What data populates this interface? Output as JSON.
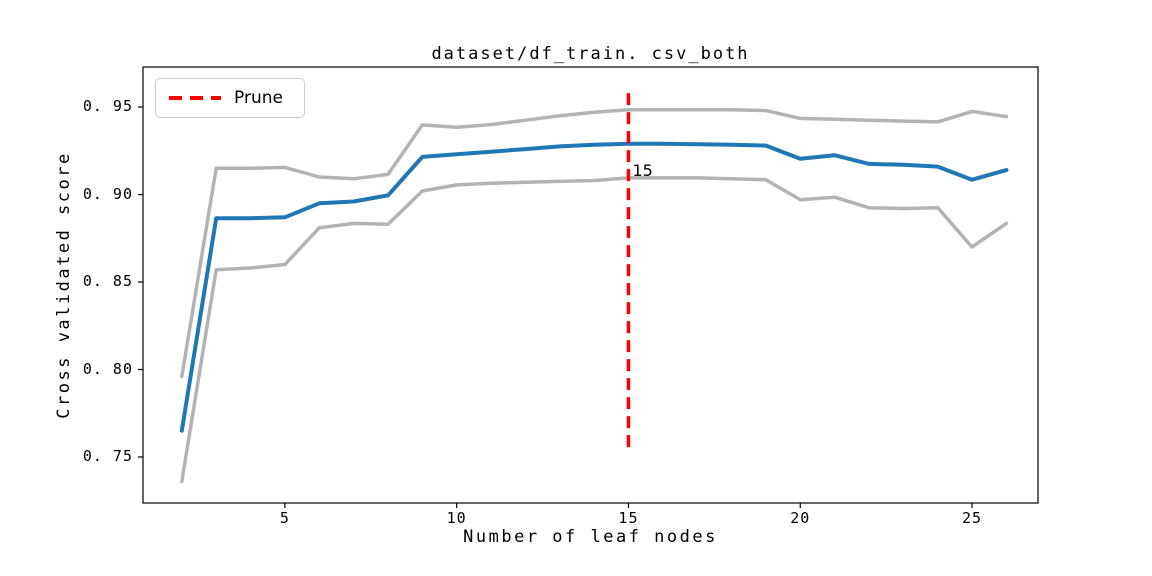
{
  "figure": {
    "title": "dataset/df_train. csv_both",
    "xlabel": "Number of leaf nodes",
    "ylabel": "Cross validated score",
    "legend_label": "Prune",
    "annotation": "15",
    "xtick_labels": [
      "5",
      "10",
      "15",
      "20",
      "25"
    ],
    "ytick_labels": [
      "0. 75",
      "0. 80",
      "0. 85",
      "0. 90",
      "0. 95"
    ]
  },
  "colors": {
    "mean_line": "#1f77b4",
    "band_line": "#b3b3b3",
    "prune_line": "#ff0000",
    "axis": "#000000",
    "legend_border": "#cccccc"
  },
  "chart_data": {
    "type": "line",
    "title": "dataset/df_train.csv_both",
    "xlabel": "Number of leaf nodes",
    "ylabel": "Cross validated score",
    "x": [
      2,
      3,
      4,
      5,
      6,
      7,
      8,
      9,
      10,
      11,
      12,
      13,
      14,
      15,
      16,
      17,
      18,
      19,
      20,
      21,
      22,
      23,
      24,
      25,
      26
    ],
    "series": [
      {
        "name": "upper_band",
        "color": "#b3b3b3",
        "width": 3.5,
        "values": [
          0.796,
          0.915,
          0.915,
          0.9155,
          0.91,
          0.909,
          0.9115,
          0.9398,
          0.9385,
          0.94,
          0.9425,
          0.945,
          0.947,
          0.9485,
          0.9485,
          0.9485,
          0.9485,
          0.948,
          0.9435,
          0.943,
          0.9425,
          0.942,
          0.9415,
          0.9475,
          0.9445
        ]
      },
      {
        "name": "lower_band",
        "color": "#b3b3b3",
        "width": 3.5,
        "values": [
          0.736,
          0.857,
          0.858,
          0.86,
          0.881,
          0.8835,
          0.883,
          0.902,
          0.9055,
          0.9065,
          0.907,
          0.9075,
          0.908,
          0.9095,
          0.9095,
          0.9095,
          0.909,
          0.9085,
          0.897,
          0.8985,
          0.8925,
          0.892,
          0.8925,
          0.87,
          0.8835
        ]
      },
      {
        "name": "cv_score_mean",
        "color": "#1f77b4",
        "width": 4,
        "values": [
          0.765,
          0.8865,
          0.8865,
          0.887,
          0.895,
          0.896,
          0.8995,
          0.9215,
          0.923,
          0.9245,
          0.926,
          0.9275,
          0.9285,
          0.929,
          0.929,
          0.9288,
          0.9285,
          0.928,
          0.9205,
          0.9225,
          0.9175,
          0.917,
          0.916,
          0.9085,
          0.914
        ]
      }
    ],
    "xticks": [
      5,
      10,
      15,
      20,
      25
    ],
    "yticks": [
      0.75,
      0.8,
      0.85,
      0.9,
      0.95
    ],
    "xlim": [
      0.87,
      26.92
    ],
    "ylim": [
      0.7237,
      0.9729
    ],
    "vline": {
      "x": 15,
      "ymin": 0.754,
      "ymax": 0.958,
      "label": "15",
      "color": "#ff0000",
      "style": "dashed"
    },
    "legend": [
      {
        "label": "Prune",
        "color": "#ff0000",
        "style": "dashed"
      }
    ],
    "legend_position": "upper left",
    "grid": false
  }
}
